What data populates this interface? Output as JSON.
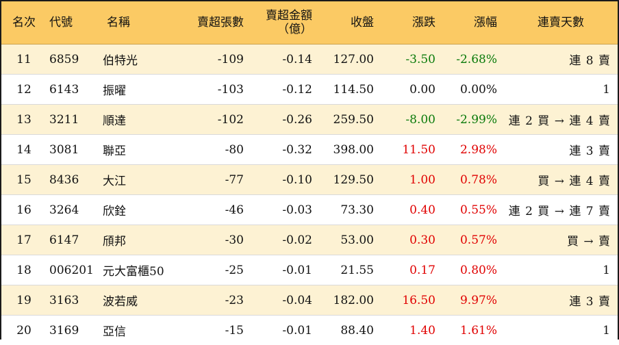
{
  "headers": {
    "rank": "名次",
    "code": "代號",
    "name": "名稱",
    "net_lots": "賣超張數",
    "net_amount_line1": "賣超金額",
    "net_amount_line2": "（億）",
    "close": "收盤",
    "change": "漲跌",
    "change_pct": "漲幅",
    "streak": "連賣天數"
  },
  "rows": [
    {
      "rank": "11",
      "code": "6859",
      "name": "伯特光",
      "net_lots": "-109",
      "net_amount": "-0.14",
      "close": "127.00",
      "change": "-3.50",
      "change_pct": "-2.68%",
      "streak": "連 8 賣",
      "dir": "neg"
    },
    {
      "rank": "12",
      "code": "6143",
      "name": "振曜",
      "net_lots": "-103",
      "net_amount": "-0.12",
      "close": "114.50",
      "change": "0.00",
      "change_pct": "0.00%",
      "streak": "1",
      "dir": "flat"
    },
    {
      "rank": "13",
      "code": "3211",
      "name": "順達",
      "net_lots": "-102",
      "net_amount": "-0.26",
      "close": "259.50",
      "change": "-8.00",
      "change_pct": "-2.99%",
      "streak": "連 2 買 → 連 4 賣",
      "dir": "neg"
    },
    {
      "rank": "14",
      "code": "3081",
      "name": "聯亞",
      "net_lots": "-80",
      "net_amount": "-0.32",
      "close": "398.00",
      "change": "11.50",
      "change_pct": "2.98%",
      "streak": "連 3 賣",
      "dir": "pos"
    },
    {
      "rank": "15",
      "code": "8436",
      "name": "大江",
      "net_lots": "-77",
      "net_amount": "-0.10",
      "close": "129.50",
      "change": "1.00",
      "change_pct": "0.78%",
      "streak": "買 → 連 4 賣",
      "dir": "pos"
    },
    {
      "rank": "16",
      "code": "3264",
      "name": "欣銓",
      "net_lots": "-46",
      "net_amount": "-0.03",
      "close": "73.30",
      "change": "0.40",
      "change_pct": "0.55%",
      "streak": "連 2 買 → 連 7 賣",
      "dir": "pos"
    },
    {
      "rank": "17",
      "code": "6147",
      "name": "頎邦",
      "net_lots": "-30",
      "net_amount": "-0.02",
      "close": "53.00",
      "change": "0.30",
      "change_pct": "0.57%",
      "streak": "買 → 賣",
      "dir": "pos"
    },
    {
      "rank": "18",
      "code": "006201",
      "name": "元大富櫃50",
      "net_lots": "-25",
      "net_amount": "-0.01",
      "close": "21.55",
      "change": "0.17",
      "change_pct": "0.80%",
      "streak": "1",
      "dir": "pos"
    },
    {
      "rank": "19",
      "code": "3163",
      "name": "波若威",
      "net_lots": "-23",
      "net_amount": "-0.04",
      "close": "182.00",
      "change": "16.50",
      "change_pct": "9.97%",
      "streak": "連 3 賣",
      "dir": "pos"
    },
    {
      "rank": "20",
      "code": "3169",
      "name": "亞信",
      "net_lots": "-15",
      "net_amount": "-0.01",
      "close": "88.40",
      "change": "1.40",
      "change_pct": "1.61%",
      "streak": "1",
      "dir": "pos"
    }
  ],
  "colors": {
    "header_bg": "#fbca64",
    "stripe_bg": "#fdf2d3",
    "up": "#e00000",
    "down": "#0a7a0a"
  }
}
